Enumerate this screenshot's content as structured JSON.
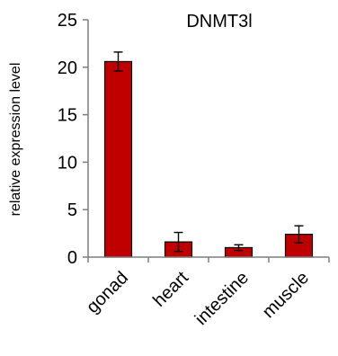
{
  "chart_data": {
    "type": "bar",
    "title": "DNMT3l",
    "xlabel": "",
    "ylabel": "relative expression level",
    "categories": [
      "gonad",
      "heart",
      "intestine",
      "muscle"
    ],
    "values": [
      20.6,
      1.6,
      1.0,
      2.4
    ],
    "errors": [
      1.0,
      1.0,
      0.3,
      0.9
    ],
    "ylim": [
      0,
      25
    ],
    "yticks": [
      0,
      5,
      10,
      15,
      20,
      25
    ],
    "ytick_labels": [
      "0",
      "5",
      "10",
      "15",
      "20",
      "25"
    ],
    "grid": false,
    "legend": "none",
    "bar_color": "#c00000",
    "bar_edge_color": "#000000",
    "axis_color": "#7f7f7f"
  }
}
